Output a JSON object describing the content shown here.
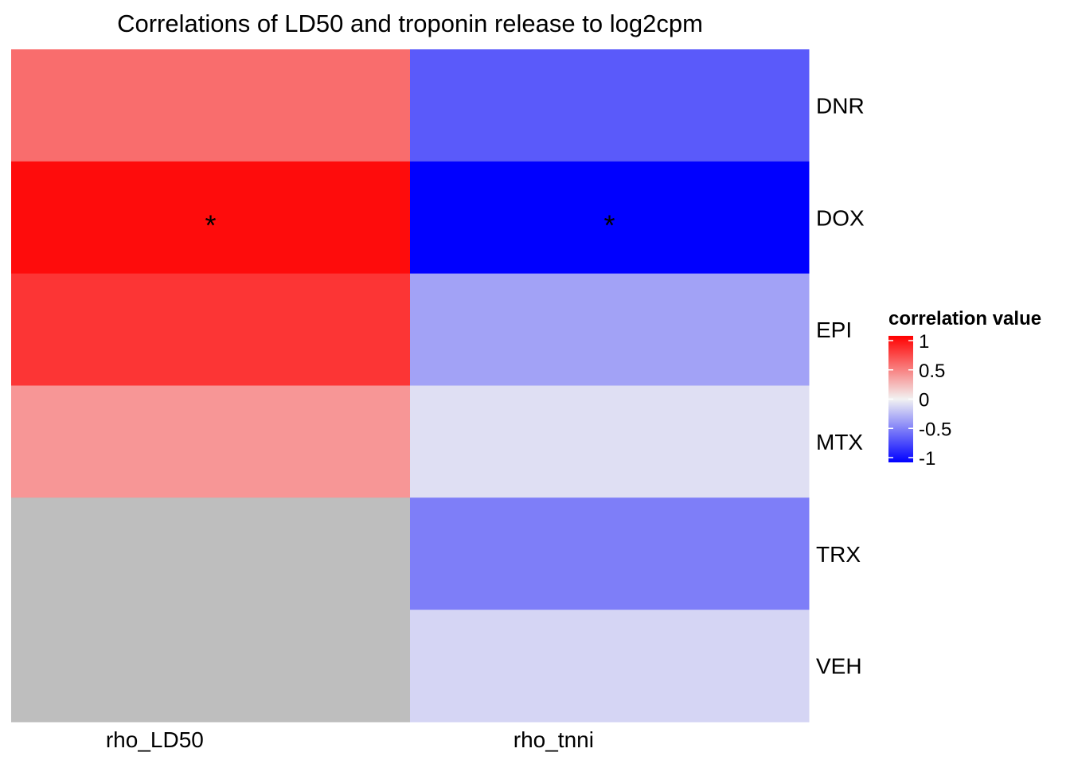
{
  "chart_data": {
    "type": "heatmap",
    "title": "Correlations of LD50 and troponin release to log2cpm",
    "rows": [
      "DNR",
      "DOX",
      "EPI",
      "MTX",
      "TRX",
      "VEH"
    ],
    "columns": [
      "rho_LD50",
      "rho_tnni"
    ],
    "column_label_align": "left-of-center",
    "cells": [
      {
        "row": "DNR",
        "column": "rho_LD50",
        "value": 0.55,
        "annotation": ""
      },
      {
        "row": "DOX",
        "column": "rho_LD50",
        "value": 0.95,
        "annotation": "*"
      },
      {
        "row": "EPI",
        "column": "rho_LD50",
        "value": 0.78,
        "annotation": ""
      },
      {
        "row": "MTX",
        "column": "rho_LD50",
        "value": 0.38,
        "annotation": ""
      },
      {
        "row": "TRX",
        "column": "rho_LD50",
        "value": null,
        "annotation": ""
      },
      {
        "row": "VEH",
        "column": "rho_LD50",
        "value": null,
        "annotation": ""
      },
      {
        "row": "DNR",
        "column": "rho_tnni",
        "value": -0.63,
        "annotation": ""
      },
      {
        "row": "DOX",
        "column": "rho_tnni",
        "value": -1.0,
        "annotation": "*"
      },
      {
        "row": "EPI",
        "column": "rho_tnni",
        "value": -0.33,
        "annotation": ""
      },
      {
        "row": "MTX",
        "column": "rho_tnni",
        "value": -0.08,
        "annotation": ""
      },
      {
        "row": "TRX",
        "column": "rho_tnni",
        "value": -0.48,
        "annotation": ""
      },
      {
        "row": "VEH",
        "column": "rho_tnni",
        "value": -0.12,
        "annotation": ""
      }
    ],
    "merged_missing": {
      "column": "rho_LD50",
      "rows": [
        "TRX",
        "VEH"
      ],
      "color": "#BEBEBE"
    },
    "color_scale": {
      "low": "#0000FF",
      "mid": "#F2F2F2",
      "high": "#FF0000",
      "min": -1,
      "max": 1,
      "na_color": "#BEBEBE"
    },
    "legend": {
      "title": "correlation value",
      "ticks": [
        1,
        0.5,
        0,
        -0.5,
        -1
      ],
      "tick_labels": [
        "1",
        "0.5",
        "0",
        "-0.5",
        "-1"
      ],
      "placement": "right"
    }
  }
}
